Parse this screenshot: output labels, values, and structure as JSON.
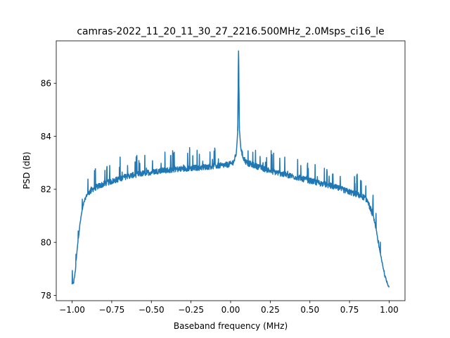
{
  "chart_data": {
    "type": "line",
    "title": "camras-2022_11_20_11_30_27_2216.500MHz_2.0Msps_ci16_le",
    "xlabel": "Baseband frequency (MHz)",
    "ylabel": "PSD (dB)",
    "xlim": [
      -1.1,
      1.1
    ],
    "ylim": [
      77.8,
      87.6
    ],
    "xticks": [
      -1.0,
      -0.75,
      -0.5,
      -0.25,
      0.0,
      0.25,
      0.5,
      0.75,
      1.0
    ],
    "xtick_labels": [
      "−1.00",
      "−0.75",
      "−0.50",
      "−0.25",
      "0.00",
      "0.25",
      "0.50",
      "0.75",
      "1.00"
    ],
    "yticks": [
      78,
      80,
      82,
      84,
      86
    ],
    "ytick_labels": [
      "78",
      "80",
      "82",
      "84",
      "86"
    ],
    "grid": false,
    "series": [
      {
        "color": "#1f77b4",
        "x": [
          -1.0,
          -0.99,
          -0.98,
          -0.97,
          -0.96,
          -0.95,
          -0.94,
          -0.93,
          -0.92,
          -0.91,
          -0.9,
          -0.88,
          -0.86,
          -0.84,
          -0.82,
          -0.8,
          -0.78,
          -0.75,
          -0.7,
          -0.65,
          -0.6,
          -0.55,
          -0.5,
          -0.45,
          -0.4,
          -0.35,
          -0.3,
          -0.25,
          -0.2,
          -0.15,
          -0.1,
          -0.05,
          0.0,
          0.02,
          0.035,
          0.045,
          0.05,
          0.055,
          0.065,
          0.08,
          0.1,
          0.15,
          0.2,
          0.25,
          0.3,
          0.35,
          0.4,
          0.45,
          0.5,
          0.55,
          0.6,
          0.65,
          0.7,
          0.75,
          0.8,
          0.84,
          0.86,
          0.88,
          0.9,
          0.91,
          0.92,
          0.93,
          0.94,
          0.95,
          0.96,
          0.97,
          0.98,
          0.99,
          1.0
        ],
        "y": [
          78.4,
          78.5,
          78.9,
          79.6,
          80.2,
          80.7,
          81.1,
          81.4,
          81.6,
          81.75,
          81.85,
          81.95,
          82.05,
          82.1,
          82.15,
          82.2,
          82.25,
          82.3,
          82.4,
          82.5,
          82.55,
          82.6,
          82.65,
          82.7,
          82.72,
          82.75,
          82.78,
          82.8,
          82.82,
          82.85,
          82.88,
          82.9,
          82.95,
          83.05,
          83.3,
          84.2,
          87.2,
          84.3,
          83.5,
          83.2,
          83.0,
          82.9,
          82.8,
          82.7,
          82.62,
          82.55,
          82.48,
          82.4,
          82.32,
          82.25,
          82.18,
          82.1,
          82.0,
          81.9,
          81.8,
          81.7,
          81.6,
          81.3,
          81.0,
          80.7,
          80.4,
          80.0,
          79.7,
          79.4,
          79.1,
          78.8,
          78.6,
          78.45,
          78.3
        ]
      }
    ]
  }
}
